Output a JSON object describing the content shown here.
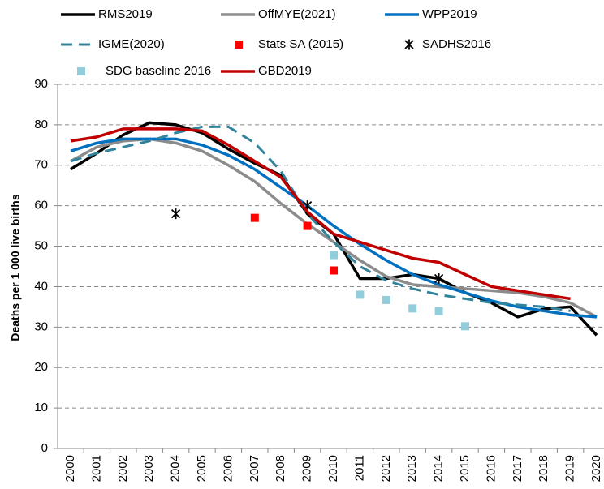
{
  "chart_data": {
    "type": "line",
    "ylabel": "Deaths per 1 000 live births",
    "categories": [
      "2000",
      "2001",
      "2002",
      "2003",
      "2004",
      "2005",
      "2006",
      "2007",
      "2008",
      "2009",
      "2010",
      "2011",
      "2012",
      "2013",
      "2014",
      "2015",
      "2016",
      "2017",
      "2018",
      "2019",
      "2020"
    ],
    "ylim": [
      0,
      90
    ],
    "yticks": [
      0,
      10,
      20,
      30,
      40,
      50,
      60,
      70,
      80,
      90
    ],
    "grid": true,
    "series": [
      {
        "name": "RMS2019",
        "color": "#000000",
        "style": "line",
        "values": [
          69,
          73,
          77.5,
          80.5,
          80,
          78,
          74,
          70.5,
          67.5,
          58,
          53,
          42,
          42,
          43,
          42,
          38.5,
          36,
          32.5,
          34.5,
          35,
          28
        ]
      },
      {
        "name": "OffMYE(2021)",
        "color": "#8c8c8c",
        "style": "line",
        "values": [
          71,
          74.5,
          76,
          76.5,
          75.5,
          73.5,
          70,
          66,
          60.5,
          55.5,
          51,
          46.5,
          42.5,
          40.5,
          40,
          39.5,
          39,
          38.5,
          37.5,
          36,
          32.5
        ]
      },
      {
        "name": "WPP2019",
        "color": "#0070c0",
        "style": "line",
        "values": [
          73.5,
          75.5,
          76.5,
          76.5,
          76.5,
          75,
          72.5,
          69,
          64.5,
          60,
          55,
          50.5,
          46.5,
          43,
          40.5,
          38.5,
          36.5,
          35,
          34,
          33,
          32.5
        ]
      },
      {
        "name": "IGME(2020)",
        "color": "#31849b",
        "style": "dashed",
        "values": [
          71,
          73,
          74.5,
          76,
          78,
          79.5,
          79.5,
          75.5,
          68.5,
          58,
          51,
          45,
          41.5,
          39.5,
          38,
          37,
          36,
          35.5,
          35,
          34,
          null
        ]
      },
      {
        "name": "Stats SA (2015)",
        "color": "#ff0000",
        "style": "square",
        "values": [
          null,
          null,
          null,
          null,
          null,
          null,
          null,
          57,
          null,
          55,
          44,
          null,
          null,
          null,
          null,
          null,
          null,
          null,
          null,
          null,
          null
        ]
      },
      {
        "name": "SADHS2016",
        "color": "#000000",
        "style": "star",
        "values": [
          null,
          null,
          null,
          null,
          58,
          null,
          null,
          null,
          null,
          60,
          null,
          null,
          null,
          null,
          42,
          null,
          null,
          null,
          null,
          null,
          null
        ]
      },
      {
        "name": "SDG baseline 2016",
        "color": "#92cddc",
        "style": "square",
        "values": [
          null,
          null,
          null,
          null,
          null,
          null,
          null,
          null,
          null,
          null,
          47.8,
          38,
          36.7,
          34.6,
          33.9,
          30.2,
          null,
          null,
          null,
          null,
          null
        ]
      },
      {
        "name": "GBD2019",
        "color": "#c00000",
        "style": "line",
        "values": [
          76,
          77,
          79,
          79,
          79,
          78.5,
          75,
          71,
          67,
          58.5,
          53,
          51,
          49,
          47,
          46,
          43,
          40,
          39,
          38,
          37,
          null
        ]
      }
    ]
  }
}
